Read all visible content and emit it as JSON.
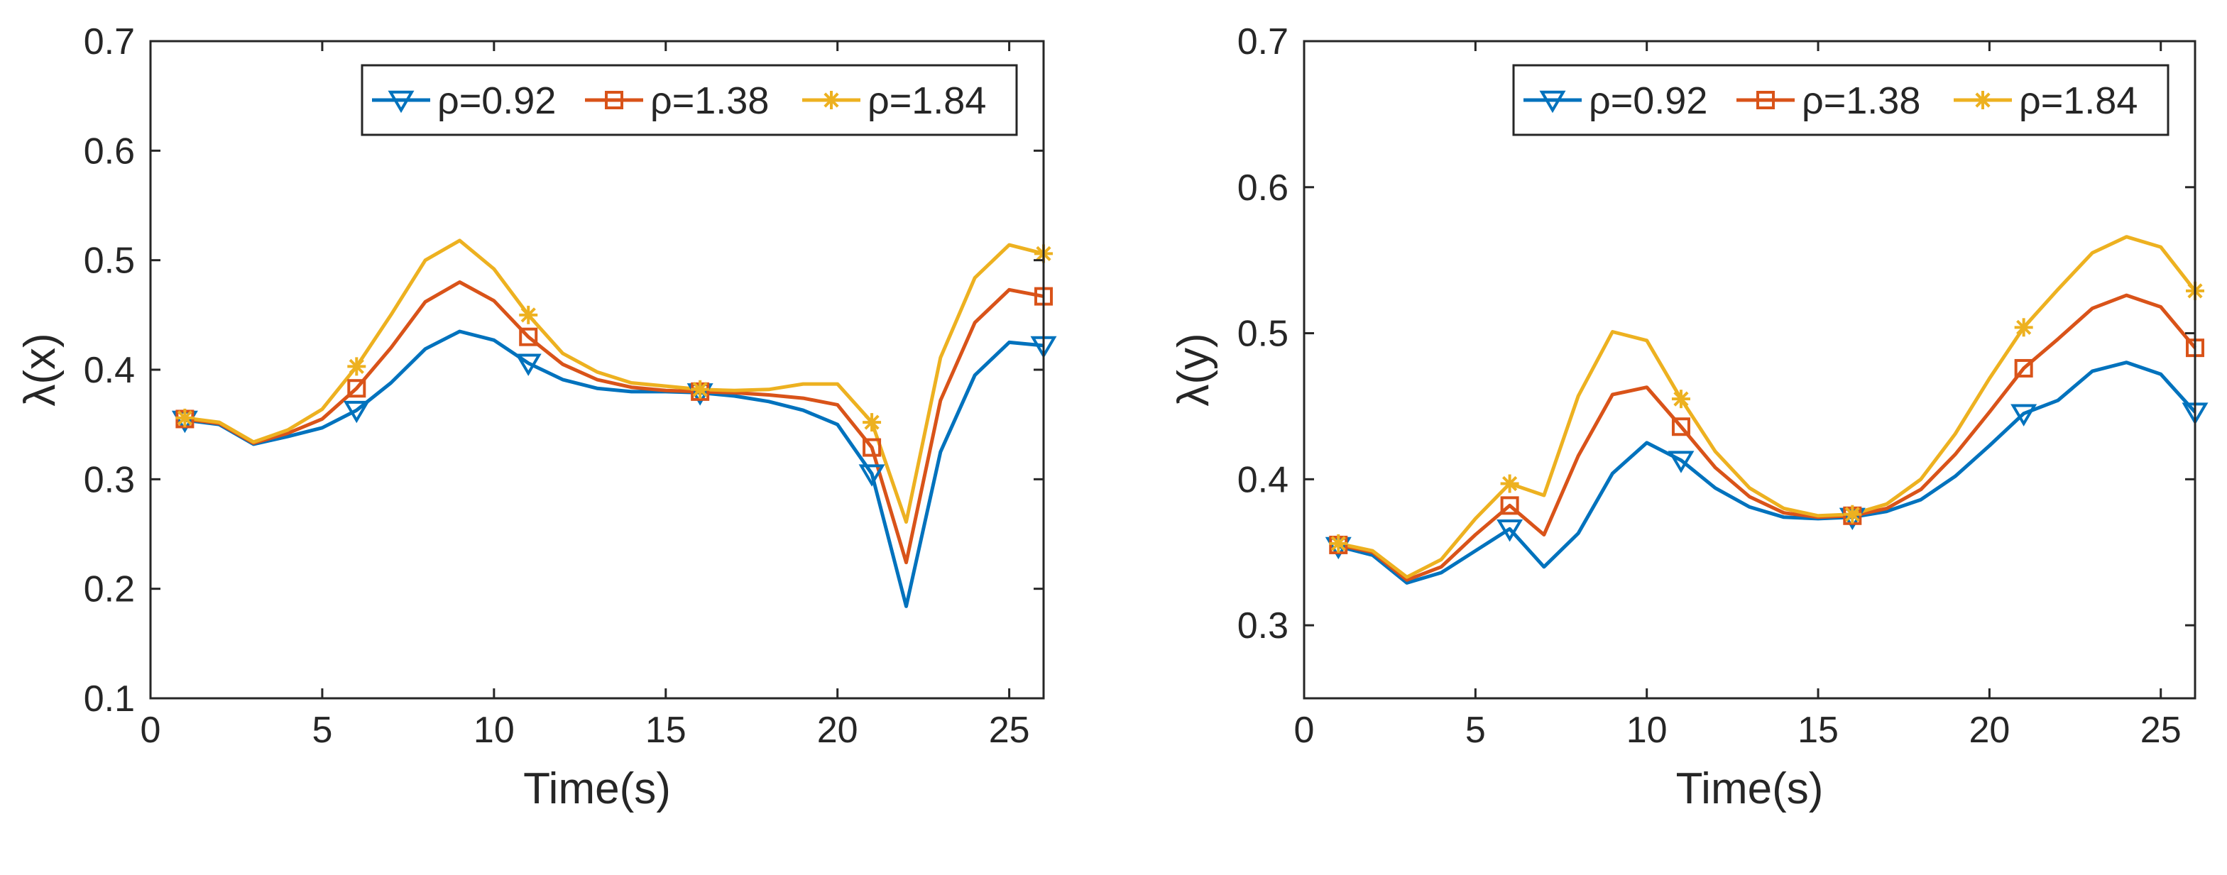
{
  "colors": {
    "series": [
      "#0072BD",
      "#D95319",
      "#EDB120"
    ],
    "axis": "#262626",
    "background": "#ffffff"
  },
  "chart_data": [
    {
      "type": "line",
      "name": "left-chart",
      "xlabel": "Time(s)",
      "ylabel": "λ(x)",
      "xlim": [
        0,
        26
      ],
      "ylim": [
        0.1,
        0.7
      ],
      "xticks": [
        0,
        5,
        10,
        15,
        20,
        25
      ],
      "xtick_labels": [
        "0",
        "5",
        "10",
        "15",
        "20",
        "25"
      ],
      "yticks": [
        0.1,
        0.2,
        0.3,
        0.4,
        0.5,
        0.6,
        0.7
      ],
      "ytick_labels": [
        "0.1",
        "0.2",
        "0.3",
        "0.4",
        "0.5",
        "0.6",
        "0.7"
      ],
      "legend": "top-right",
      "x": [
        1,
        2,
        3,
        4,
        5,
        6,
        7,
        8,
        9,
        10,
        11,
        12,
        13,
        14,
        15,
        16,
        17,
        18,
        19,
        20,
        21,
        22,
        23,
        24,
        25,
        26
      ],
      "marker_x": [
        1,
        6,
        11,
        16,
        21,
        26
      ],
      "series": [
        {
          "name": "ρ=0.92",
          "label": "ρ=0.92",
          "marker": "triangle-down",
          "values": [
            0.354,
            0.35,
            0.332,
            0.339,
            0.347,
            0.363,
            0.388,
            0.419,
            0.435,
            0.427,
            0.406,
            0.391,
            0.383,
            0.38,
            0.38,
            0.379,
            0.376,
            0.371,
            0.363,
            0.35,
            0.305,
            0.184,
            0.325,
            0.395,
            0.425,
            0.422
          ]
        },
        {
          "name": "ρ=1.38",
          "label": "ρ=1.38",
          "marker": "square",
          "values": [
            0.355,
            0.351,
            0.333,
            0.342,
            0.355,
            0.383,
            0.42,
            0.462,
            0.48,
            0.463,
            0.43,
            0.405,
            0.391,
            0.384,
            0.381,
            0.38,
            0.379,
            0.377,
            0.374,
            0.368,
            0.329,
            0.224,
            0.372,
            0.443,
            0.473,
            0.467
          ]
        },
        {
          "name": "ρ=1.84",
          "label": "ρ=1.84",
          "marker": "asterisk",
          "values": [
            0.356,
            0.352,
            0.334,
            0.345,
            0.364,
            0.403,
            0.45,
            0.5,
            0.518,
            0.492,
            0.45,
            0.415,
            0.398,
            0.388,
            0.385,
            0.382,
            0.381,
            0.382,
            0.387,
            0.387,
            0.352,
            0.261,
            0.411,
            0.484,
            0.514,
            0.506
          ]
        }
      ]
    },
    {
      "type": "line",
      "name": "right-chart",
      "xlabel": "Time(s)",
      "ylabel": "λ(y)",
      "xlim": [
        0,
        26
      ],
      "ylim": [
        0.25,
        0.7
      ],
      "xticks": [
        0,
        5,
        10,
        15,
        20,
        25
      ],
      "xtick_labels": [
        "0",
        "5",
        "10",
        "15",
        "20",
        "25"
      ],
      "yticks": [
        0.3,
        0.4,
        0.5,
        0.6,
        0.7
      ],
      "ytick_labels": [
        "0.3",
        "0.4",
        "0.5",
        "0.6",
        "0.7"
      ],
      "legend": "top-right",
      "x": [
        1,
        2,
        3,
        4,
        5,
        6,
        7,
        8,
        9,
        10,
        11,
        12,
        13,
        14,
        15,
        16,
        17,
        18,
        19,
        20,
        21,
        22,
        23,
        24,
        25,
        26
      ],
      "marker_x": [
        1,
        6,
        11,
        16,
        21,
        26
      ],
      "series": [
        {
          "name": "ρ=0.92",
          "label": "ρ=0.92",
          "marker": "triangle-down",
          "values": [
            0.354,
            0.348,
            0.329,
            0.336,
            0.351,
            0.366,
            0.34,
            0.363,
            0.404,
            0.425,
            0.413,
            0.394,
            0.381,
            0.374,
            0.373,
            0.374,
            0.378,
            0.386,
            0.402,
            0.423,
            0.445,
            0.454,
            0.474,
            0.48,
            0.472,
            0.446
          ]
        },
        {
          "name": "ρ=1.38",
          "label": "ρ=1.38",
          "marker": "square",
          "values": [
            0.355,
            0.35,
            0.331,
            0.34,
            0.362,
            0.382,
            0.362,
            0.416,
            0.458,
            0.463,
            0.436,
            0.408,
            0.388,
            0.377,
            0.374,
            0.375,
            0.38,
            0.393,
            0.417,
            0.446,
            0.476,
            0.496,
            0.517,
            0.526,
            0.518,
            0.49
          ]
        },
        {
          "name": "ρ=1.84",
          "label": "ρ=1.84",
          "marker": "asterisk",
          "values": [
            0.356,
            0.351,
            0.333,
            0.345,
            0.373,
            0.397,
            0.389,
            0.457,
            0.501,
            0.495,
            0.455,
            0.419,
            0.394,
            0.38,
            0.375,
            0.376,
            0.383,
            0.4,
            0.431,
            0.469,
            0.504,
            0.53,
            0.555,
            0.566,
            0.559,
            0.529
          ]
        }
      ]
    }
  ]
}
